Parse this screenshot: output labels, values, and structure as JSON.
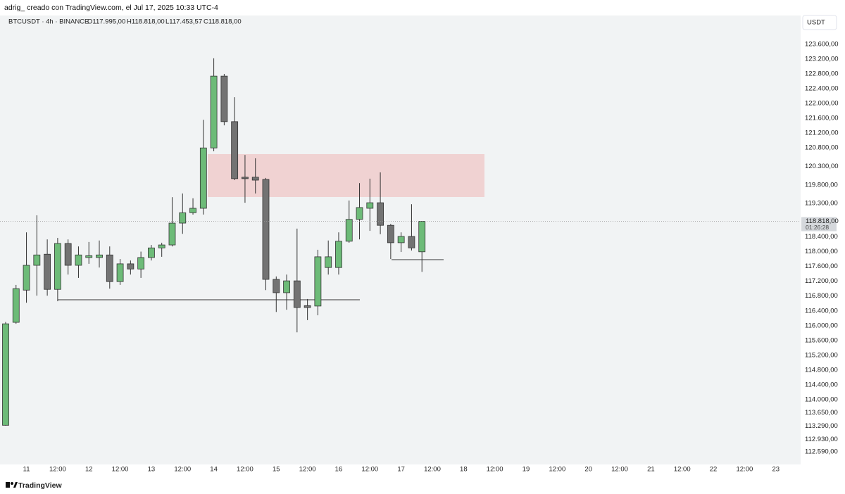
{
  "header": {
    "author_line": "adrig_ creado con TradingView.com, el Jul 17, 2025 10:33 UTC-4"
  },
  "legend": {
    "symbol": "BTCUSDT · 4h · BINANCE",
    "ohlc": [
      "O117.995,00",
      "H118.818,00",
      "L117.453,57",
      "C118.818,00"
    ]
  },
  "currency": "USDT",
  "footer": {
    "brand": "TradingView"
  },
  "countdown": "01:26:28",
  "chart_data": {
    "type": "candlestick",
    "up_color": "#6dbb78",
    "down_color": "#737373",
    "categories": [
      null,
      null,
      "11",
      null,
      null,
      "12:00",
      null,
      null,
      "12",
      null,
      null,
      "12:00",
      null,
      null,
      "13",
      null,
      null,
      "12:00",
      null,
      null,
      "14",
      null,
      null,
      "12:00",
      null,
      null,
      "15",
      null,
      null,
      "12:00",
      null,
      null,
      "16",
      null,
      null,
      "12:00",
      null,
      null,
      "17",
      null,
      null,
      "12:00",
      null,
      null,
      "18",
      null,
      null,
      "12:00",
      null,
      null,
      "19",
      null,
      null,
      "12:00",
      null,
      null,
      "20",
      null,
      null,
      "12:00",
      null,
      null,
      "21",
      null,
      null,
      "12:00",
      null,
      null,
      "22",
      null,
      null,
      "12:00",
      null,
      null,
      "23",
      null,
      null
    ],
    "open": [
      113310,
      116090,
      116960,
      117630,
      117930,
      116980,
      118220,
      117630,
      117840,
      117840,
      117910,
      117190,
      117670,
      117530,
      117840,
      118100,
      118180,
      118770,
      119050,
      119170,
      120800,
      122740,
      121510,
      120010,
      120010,
      119950,
      117250,
      116890,
      117210,
      116540,
      116530,
      117570,
      117570,
      118280,
      118870,
      119170,
      119320,
      118710,
      118240,
      118410,
      117995,
      null,
      null,
      null,
      null,
      null,
      null,
      null,
      null,
      null,
      null,
      null,
      null,
      null,
      null,
      null,
      null,
      null,
      null,
      null,
      null,
      null,
      null,
      null,
      null,
      null,
      null,
      null,
      null,
      null,
      null,
      null,
      null,
      null,
      null,
      null,
      null
    ],
    "high": [
      116100,
      117100,
      118520,
      118980,
      118330,
      118370,
      118330,
      118140,
      118260,
      118300,
      118140,
      117800,
      117760,
      118000,
      118180,
      118240,
      119470,
      119570,
      119440,
      121560,
      123220,
      122800,
      122170,
      120610,
      120520,
      119990,
      117330,
      117380,
      118620,
      116720,
      118050,
      118300,
      118520,
      119380,
      119850,
      119970,
      120140,
      118750,
      118520,
      119280,
      118818,
      null,
      null,
      null,
      null,
      null,
      null,
      null,
      null,
      null,
      null,
      null,
      null,
      null,
      null,
      null,
      null,
      null,
      null,
      null,
      null,
      null,
      null,
      null,
      null,
      null,
      null,
      null,
      null,
      null,
      null,
      null,
      null,
      null,
      null,
      null,
      null
    ],
    "low": [
      113300,
      116050,
      116620,
      116810,
      116810,
      116660,
      117380,
      117290,
      117670,
      117570,
      117000,
      117100,
      117380,
      117290,
      117760,
      117860,
      118140,
      118480,
      119000,
      119000,
      120710,
      121410,
      119930,
      119320,
      119570,
      116960,
      116370,
      116430,
      115820,
      116150,
      116280,
      117380,
      117380,
      118240,
      118330,
      118560,
      118470,
      117800,
      117990,
      118030,
      117453,
      null,
      null,
      null,
      null,
      null,
      null,
      null,
      null,
      null,
      null,
      null,
      null,
      null,
      null,
      null,
      null,
      null,
      null,
      null,
      null,
      null,
      null,
      null,
      null,
      null,
      null,
      null,
      null,
      null,
      null,
      null,
      null,
      null,
      null,
      null,
      null
    ],
    "close": [
      116050,
      117000,
      117630,
      117910,
      116980,
      118220,
      117630,
      117910,
      117890,
      117910,
      117190,
      117670,
      117530,
      117840,
      118100,
      118180,
      118770,
      119050,
      119170,
      120800,
      122740,
      121510,
      119970,
      119970,
      119930,
      117250,
      116890,
      117210,
      116490,
      116490,
      117860,
      117860,
      118280,
      118870,
      119190,
      119320,
      118710,
      118240,
      118410,
      118100,
      118818,
      null,
      null,
      null,
      null,
      null,
      null,
      null,
      null,
      null,
      null,
      null,
      null,
      null,
      null,
      null,
      null,
      null,
      null,
      null,
      null,
      null,
      null,
      null,
      null,
      null,
      null,
      null,
      null,
      null,
      null,
      null,
      null,
      null,
      null,
      null,
      null
    ],
    "last_price": {
      "value": 118818,
      "label": "118.818,00"
    },
    "ylim": [
      112290,
      124320
    ],
    "yticks": [
      {
        "value": 123600,
        "label": "123.600,00"
      },
      {
        "value": 123200,
        "label": "123.200,00"
      },
      {
        "value": 122800,
        "label": "122.800,00"
      },
      {
        "value": 122400,
        "label": "122.400,00"
      },
      {
        "value": 122000,
        "label": "122.000,00"
      },
      {
        "value": 121600,
        "label": "121.600,00"
      },
      {
        "value": 121200,
        "label": "121.200,00"
      },
      {
        "value": 120800,
        "label": "120.800,00"
      },
      {
        "value": 120300,
        "label": "120.300,00"
      },
      {
        "value": 119800,
        "label": "119.800,00"
      },
      {
        "value": 119300,
        "label": "119.300,00"
      },
      {
        "value": 118400,
        "label": "118.400,00"
      },
      {
        "value": 118000,
        "label": "118.000,00"
      },
      {
        "value": 117600,
        "label": "117.600,00"
      },
      {
        "value": 117200,
        "label": "117.200,00"
      },
      {
        "value": 116800,
        "label": "116.800,00"
      },
      {
        "value": 116400,
        "label": "116.400,00"
      },
      {
        "value": 116000,
        "label": "116.000,00"
      },
      {
        "value": 115600,
        "label": "115.600,00"
      },
      {
        "value": 115200,
        "label": "115.200,00"
      },
      {
        "value": 114800,
        "label": "114.800,00"
      },
      {
        "value": 114400,
        "label": "114.400,00"
      },
      {
        "value": 114000,
        "label": "114.000,00"
      },
      {
        "value": 113650,
        "label": "113.650,00"
      },
      {
        "value": 113290,
        "label": "113.290,00"
      },
      {
        "value": 112930,
        "label": "112.930,00"
      },
      {
        "value": 112590,
        "label": "112.590,00"
      }
    ]
  }
}
